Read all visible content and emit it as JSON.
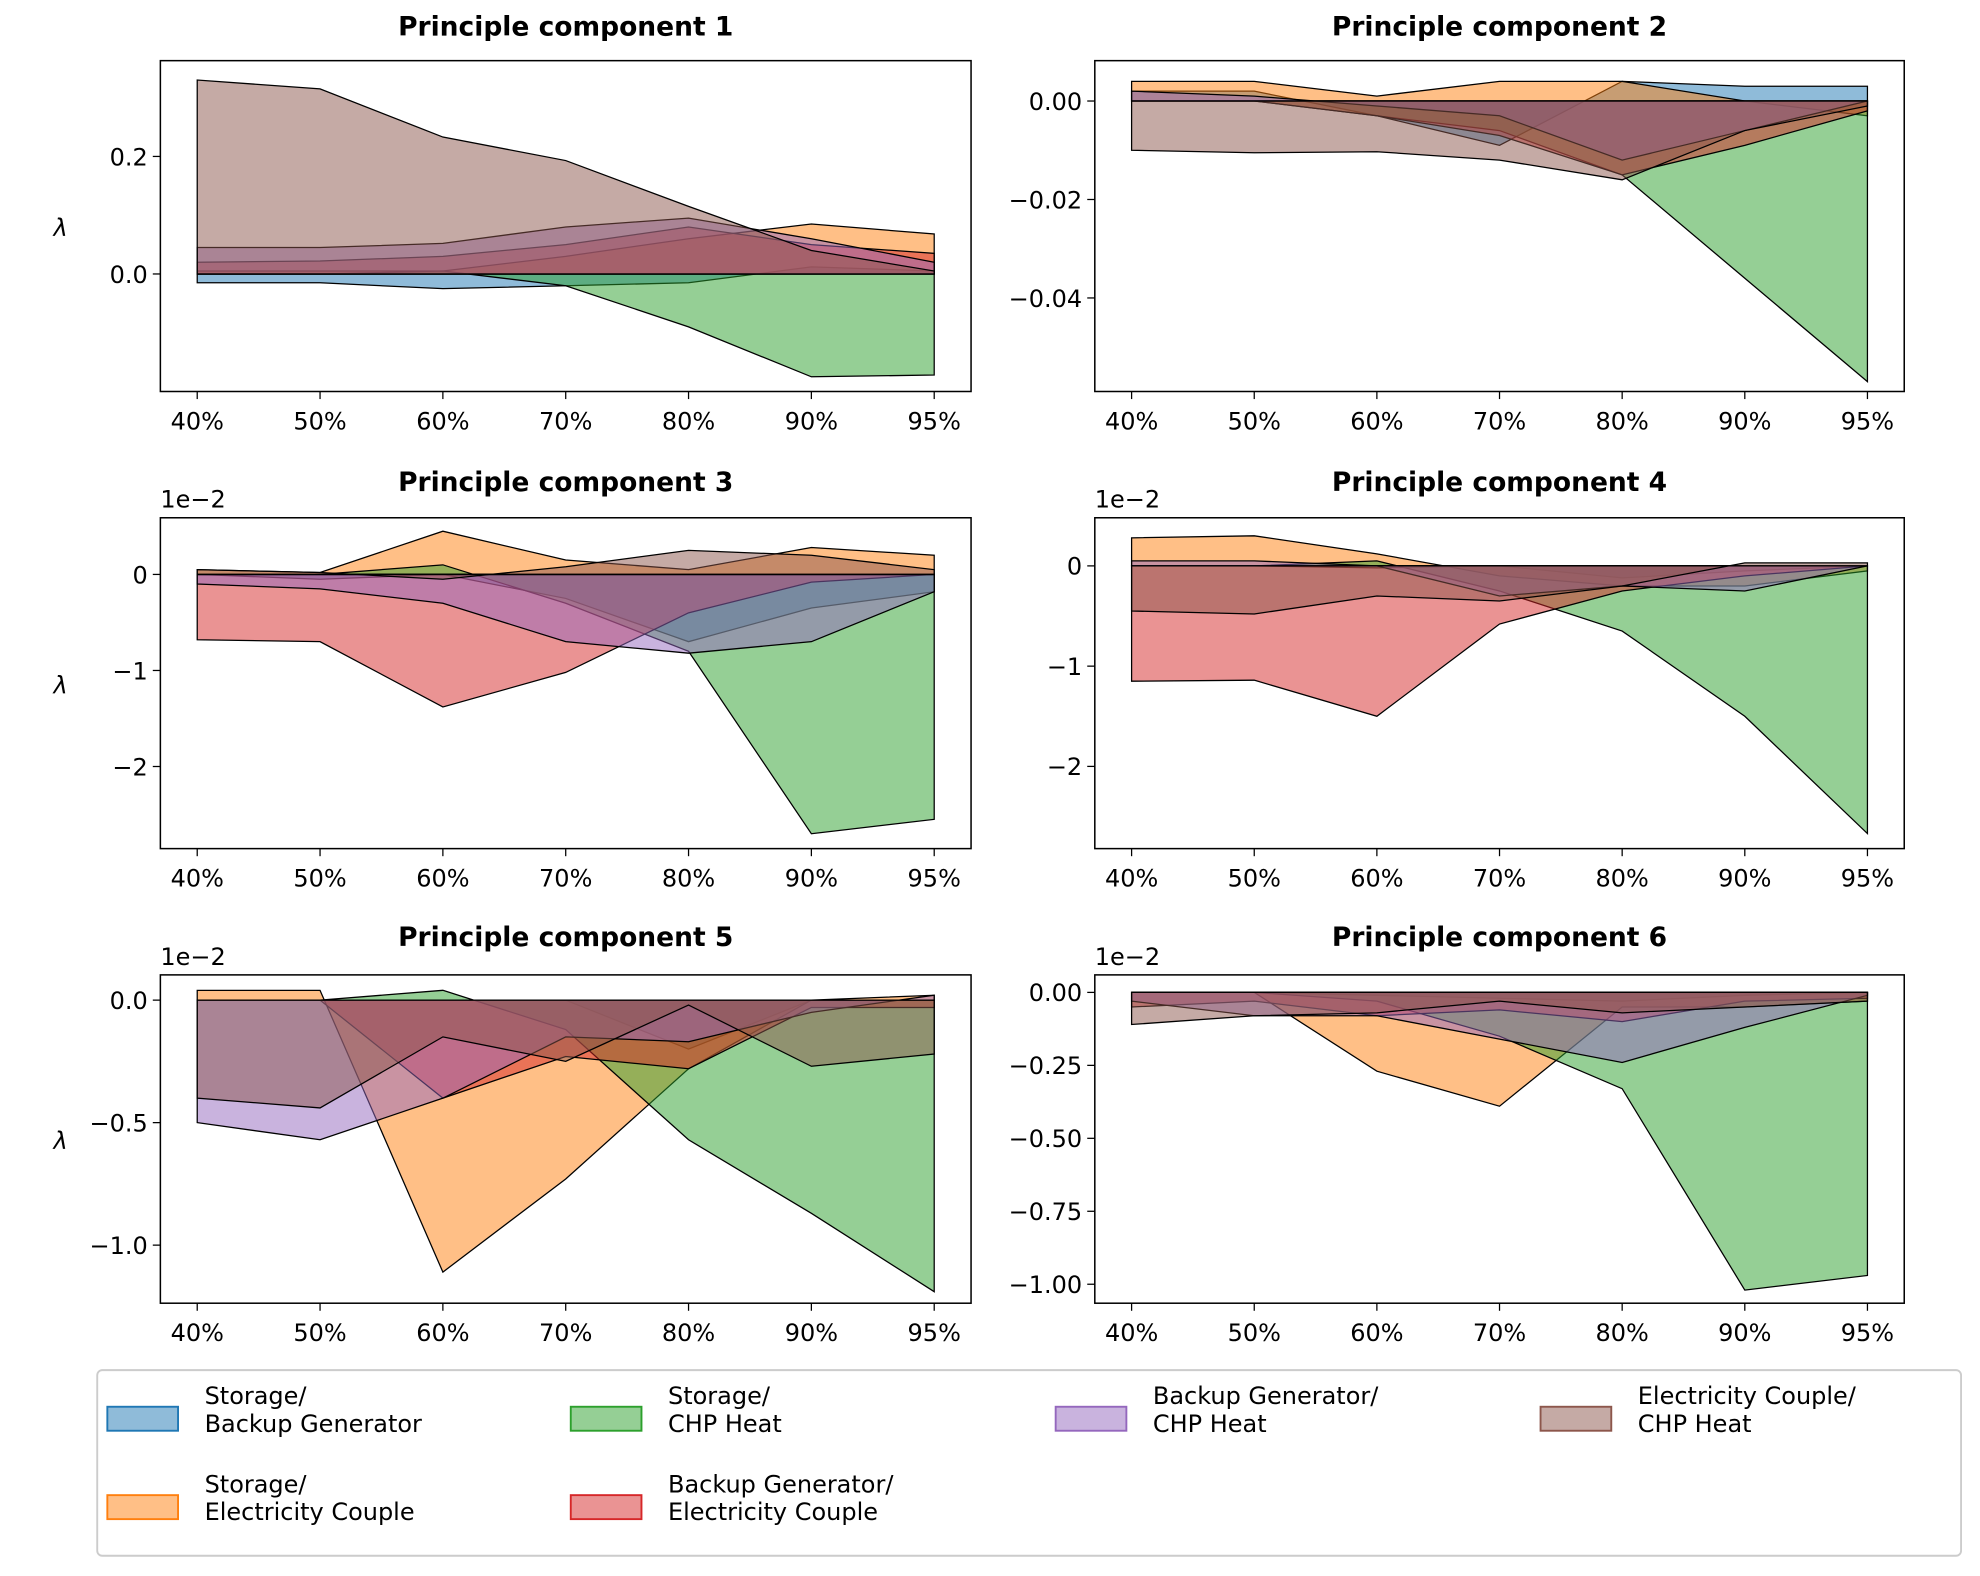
{
  "chart_data": [
    {
      "type": "area",
      "title": "Principle component 1",
      "y_label": "λ",
      "categories": [
        "40%",
        "50%",
        "60%",
        "70%",
        "80%",
        "90%",
        "95%"
      ],
      "ylim": [
        -0.2,
        0.363
      ],
      "yticks": [
        {
          "value": 0,
          "label": "0.0"
        },
        0.2
      ],
      "series": [
        {
          "name": "Storage/\nBackup Generator",
          "color": "#1f77b4",
          "values": [
            -0.015,
            -0.015,
            -0.025,
            -0.02,
            -0.015,
            0.012,
            0.005
          ]
        },
        {
          "name": "Storage/\nElectricity Couple",
          "color": "#ff7f0e",
          "values": [
            0.005,
            0.005,
            0.005,
            0.03,
            0.06,
            0.085,
            0.068
          ]
        },
        {
          "name": "Storage/\nCHP Heat",
          "color": "#2ca02c",
          "values": [
            0,
            0,
            0.005,
            -0.02,
            -0.09,
            -0.175,
            -0.172
          ]
        },
        {
          "name": "Backup Generator/\nElectricity Couple",
          "color": "#d62728",
          "values": [
            0.02,
            0.022,
            0.03,
            0.05,
            0.08,
            0.05,
            0.035
          ]
        },
        {
          "name": "Backup Generator/\nCHP Heat",
          "color": "#9467bd",
          "values": [
            0.045,
            0.045,
            0.052,
            0.08,
            0.095,
            0.06,
            0.02
          ]
        },
        {
          "name": "Electricity Couple/\nCHP Heat",
          "color": "#8c564b",
          "values": [
            0.33,
            0.315,
            0.233,
            0.193,
            0.115,
            0.04,
            0.005
          ]
        }
      ]
    },
    {
      "type": "area",
      "title": "Principle component 2",
      "categories": [
        "40%",
        "50%",
        "60%",
        "70%",
        "80%",
        "90%",
        "95%"
      ],
      "ylim": [
        -0.059,
        0.0082
      ],
      "yticks": [
        {
          "value": -0.04,
          "label": "−0.04"
        },
        {
          "value": -0.02,
          "label": "−0.02"
        },
        {
          "value": 0,
          "label": "0.00"
        }
      ],
      "series": [
        {
          "name": "Storage/\nBackup Generator",
          "color": "#1f77b4",
          "values": [
            0.002,
            0.002,
            -0.003,
            -0.009,
            0.004,
            0.003,
            0.003
          ]
        },
        {
          "name": "Storage/\nElectricity Couple",
          "color": "#ff7f0e",
          "values": [
            0.004,
            0.004,
            0.001,
            0.004,
            0.004,
            0,
            -0.003
          ]
        },
        {
          "name": "Storage/\nCHP Heat",
          "color": "#2ca02c",
          "values": [
            0,
            0,
            -0.003,
            -0.006,
            -0.015,
            -0.036,
            -0.057
          ]
        },
        {
          "name": "Backup Generator/\nElectricity Couple",
          "color": "#d62728",
          "values": [
            0,
            0,
            -0.003,
            -0.007,
            -0.015,
            -0.009,
            -0.002
          ]
        },
        {
          "name": "Backup Generator/\nCHP Heat",
          "color": "#9467bd",
          "values": [
            0.002,
            0.001,
            -0.001,
            -0.003,
            -0.012,
            -0.006,
            0
          ]
        },
        {
          "name": "Electricity Couple/\nCHP Heat",
          "color": "#8c564b",
          "values": [
            -0.01,
            -0.0105,
            -0.0103,
            -0.012,
            -0.016,
            -0.006,
            -0.001
          ]
        }
      ]
    },
    {
      "type": "area",
      "title": "Principle component 3",
      "y_label": "λ",
      "offset_label": "1e−2",
      "categories": [
        "40%",
        "50%",
        "60%",
        "70%",
        "80%",
        "90%",
        "95%"
      ],
      "ylim": [
        -2.855,
        0.59
      ],
      "yticks": [
        {
          "value": -2,
          "label": "−2"
        },
        {
          "value": -1,
          "label": "−1"
        },
        0
      ],
      "series": [
        {
          "name": "Storage/\nBackup Generator",
          "color": "#1f77b4",
          "values": [
            0,
            -0.05,
            0,
            -0.25,
            -0.7,
            -0.35,
            -0.18
          ]
        },
        {
          "name": "Storage/\nElectricity Couple",
          "color": "#ff7f0e",
          "values": [
            0.05,
            0.02,
            0.45,
            0.15,
            0.05,
            0.28,
            0.2
          ]
        },
        {
          "name": "Storage/\nCHP Heat",
          "color": "#2ca02c",
          "values": [
            0,
            0,
            0.1,
            -0.3,
            -0.8,
            -2.7,
            -2.55
          ]
        },
        {
          "name": "Backup Generator/\nElectricity Couple",
          "color": "#d62728",
          "values": [
            -0.68,
            -0.7,
            -1.38,
            -1.02,
            -0.4,
            -0.08,
            0
          ]
        },
        {
          "name": "Backup Generator/\nCHP Heat",
          "color": "#9467bd",
          "values": [
            -0.1,
            -0.15,
            -0.3,
            -0.7,
            -0.82,
            -0.7,
            -0.18
          ]
        },
        {
          "name": "Electricity Couple/\nCHP Heat",
          "color": "#8c564b",
          "values": [
            0.05,
            0.02,
            -0.05,
            0.08,
            0.25,
            0.2,
            0.05
          ]
        }
      ]
    },
    {
      "type": "area",
      "title": "Principle component 4",
      "offset_label": "1e−2",
      "categories": [
        "40%",
        "50%",
        "60%",
        "70%",
        "80%",
        "90%",
        "95%"
      ],
      "ylim": [
        -2.82,
        0.48
      ],
      "yticks": [
        {
          "value": -2,
          "label": "−2"
        },
        {
          "value": -1,
          "label": "−1"
        },
        0
      ],
      "series": [
        {
          "name": "Storage/\nBackup Generator",
          "color": "#1f77b4",
          "values": [
            0,
            0,
            -0.02,
            0,
            -0.12,
            -0.05,
            0
          ]
        },
        {
          "name": "Storage/\nElectricity Couple",
          "color": "#ff7f0e",
          "values": [
            0.28,
            0.3,
            0.12,
            -0.1,
            -0.2,
            -0.2,
            -0.05
          ]
        },
        {
          "name": "Storage/\nCHP Heat",
          "color": "#2ca02c",
          "values": [
            0,
            0,
            0.05,
            -0.25,
            -0.65,
            -1.5,
            -2.67
          ]
        },
        {
          "name": "Backup Generator/\nElectricity Couple",
          "color": "#d62728",
          "values": [
            -1.15,
            -1.14,
            -1.5,
            -0.58,
            -0.25,
            -0.1,
            0
          ]
        },
        {
          "name": "Backup Generator/\nCHP Heat",
          "color": "#9467bd",
          "values": [
            0.05,
            0.05,
            0,
            -0.3,
            -0.2,
            -0.25,
            0
          ]
        },
        {
          "name": "Electricity Couple/\nCHP Heat",
          "color": "#8c564b",
          "values": [
            -0.45,
            -0.48,
            -0.3,
            -0.35,
            -0.2,
            0.03,
            0.03
          ]
        }
      ]
    },
    {
      "type": "area",
      "title": "Principle component 5",
      "y_label": "λ",
      "offset_label": "1e−2",
      "categories": [
        "40%",
        "50%",
        "60%",
        "70%",
        "80%",
        "90%",
        "95%"
      ],
      "ylim": [
        -1.237,
        0.103
      ],
      "yticks": [
        {
          "value": -1,
          "label": "−1.0"
        },
        {
          "value": -0.5,
          "label": "−0.5"
        },
        {
          "value": 0,
          "label": "0.0"
        }
      ],
      "series": [
        {
          "name": "Storage/\nBackup Generator",
          "color": "#1f77b4",
          "values": [
            0,
            0,
            0,
            0,
            -0.2,
            0,
            0
          ]
        },
        {
          "name": "Storage/\nElectricity Couple",
          "color": "#ff7f0e",
          "values": [
            0.04,
            0.04,
            -1.11,
            -0.73,
            -0.28,
            0,
            0.02
          ]
        },
        {
          "name": "Storage/\nCHP Heat",
          "color": "#2ca02c",
          "values": [
            0,
            0,
            0.04,
            -0.12,
            -0.57,
            -0.87,
            -1.19
          ]
        },
        {
          "name": "Backup Generator/\nElectricity Couple",
          "color": "#d62728",
          "values": [
            0,
            0,
            -0.4,
            -0.23,
            -0.28,
            -0.03,
            -0.03
          ]
        },
        {
          "name": "Backup Generator/\nCHP Heat",
          "color": "#9467bd",
          "values": [
            -0.5,
            -0.57,
            -0.4,
            -0.15,
            -0.17,
            -0.05,
            0.02
          ]
        },
        {
          "name": "Electricity Couple/\nCHP Heat",
          "color": "#8c564b",
          "values": [
            -0.4,
            -0.44,
            -0.15,
            -0.25,
            -0.02,
            -0.27,
            -0.22
          ]
        }
      ]
    },
    {
      "type": "area",
      "title": "Principle component 6",
      "offset_label": "1e−2",
      "categories": [
        "40%",
        "50%",
        "60%",
        "70%",
        "80%",
        "90%",
        "95%"
      ],
      "ylim": [
        -1.065,
        0.06
      ],
      "yticks": [
        {
          "value": -1,
          "label": "−1.00"
        },
        {
          "value": -0.75,
          "label": "−0.75"
        },
        {
          "value": -0.5,
          "label": "−0.50"
        },
        {
          "value": -0.25,
          "label": "−0.25"
        },
        {
          "value": 0,
          "label": "0.00"
        }
      ],
      "series": [
        {
          "name": "Storage/\nBackup Generator",
          "color": "#1f77b4",
          "values": [
            0,
            0,
            -0.01,
            -0.02,
            -0.03,
            -0.01,
            0
          ]
        },
        {
          "name": "Storage/\nElectricity Couple",
          "color": "#ff7f0e",
          "values": [
            0,
            0,
            -0.27,
            -0.39,
            -0.05,
            -0.05,
            -0.03
          ]
        },
        {
          "name": "Storage/\nCHP Heat",
          "color": "#2ca02c",
          "values": [
            0,
            0,
            -0.03,
            -0.15,
            -0.33,
            -1.02,
            -0.97
          ]
        },
        {
          "name": "Backup Generator/\nElectricity Couple",
          "color": "#d62728",
          "values": [
            -0.05,
            -0.03,
            -0.08,
            -0.06,
            -0.1,
            -0.03,
            -0.02
          ]
        },
        {
          "name": "Backup Generator/\nCHP Heat",
          "color": "#9467bd",
          "values": [
            -0.03,
            -0.08,
            -0.08,
            -0.16,
            -0.24,
            -0.12,
            -0.01
          ]
        },
        {
          "name": "Electricity Couple/\nCHP Heat",
          "color": "#8c564b",
          "values": [
            -0.11,
            -0.08,
            -0.07,
            -0.03,
            -0.07,
            -0.05,
            -0.03
          ]
        }
      ]
    }
  ]
}
